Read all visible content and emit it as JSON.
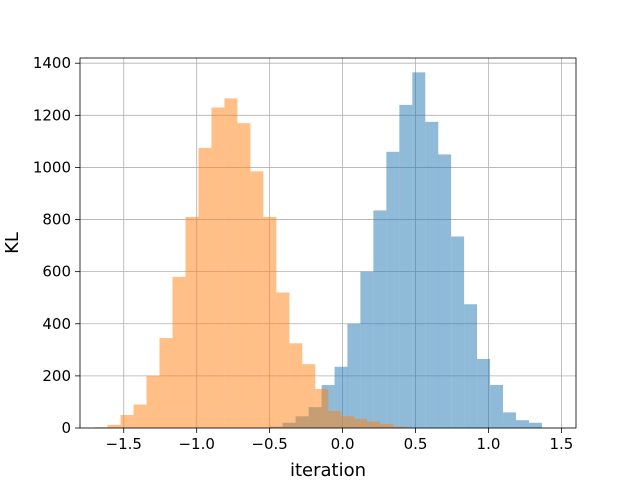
{
  "chart_data": {
    "type": "histogram",
    "title": "",
    "xlabel": "iteration",
    "ylabel": "KL",
    "xlim": [
      -1.8,
      1.6
    ],
    "ylim": [
      0,
      1420
    ],
    "xticks": [
      -1.5,
      -1.0,
      -0.5,
      0.0,
      0.5,
      1.0,
      1.5
    ],
    "xtick_labels": [
      "−1.5",
      "−1.0",
      "−0.5",
      "0.0",
      "0.5",
      "1.0",
      "1.5"
    ],
    "yticks": [
      0,
      200,
      400,
      600,
      800,
      1000,
      1200,
      1400
    ],
    "ytick_labels": [
      "0",
      "200",
      "400",
      "600",
      "800",
      "1000",
      "1200",
      "1400"
    ],
    "grid": true,
    "series": [
      {
        "color": "#1f77b4",
        "alpha": 0.5,
        "bin_width": 0.0889,
        "bins": [
          {
            "x": -0.5,
            "y": 5
          },
          {
            "x": -0.411,
            "y": 20
          },
          {
            "x": -0.322,
            "y": 45
          },
          {
            "x": -0.233,
            "y": 80
          },
          {
            "x": -0.144,
            "y": 165
          },
          {
            "x": -0.055,
            "y": 235
          },
          {
            "x": 0.033,
            "y": 400
          },
          {
            "x": 0.122,
            "y": 600
          },
          {
            "x": 0.211,
            "y": 835
          },
          {
            "x": 0.3,
            "y": 1060
          },
          {
            "x": 0.389,
            "y": 1240
          },
          {
            "x": 0.478,
            "y": 1365
          },
          {
            "x": 0.567,
            "y": 1175
          },
          {
            "x": 0.655,
            "y": 1050
          },
          {
            "x": 0.744,
            "y": 735
          },
          {
            "x": 0.833,
            "y": 475
          },
          {
            "x": 0.922,
            "y": 265
          },
          {
            "x": 1.011,
            "y": 165
          },
          {
            "x": 1.1,
            "y": 60
          },
          {
            "x": 1.189,
            "y": 30
          },
          {
            "x": 1.278,
            "y": 20
          }
        ]
      },
      {
        "color": "#ff7f0e",
        "alpha": 0.5,
        "bin_width": 0.0889,
        "bins": [
          {
            "x": -1.7,
            "y": 3
          },
          {
            "x": -1.611,
            "y": 12
          },
          {
            "x": -1.522,
            "y": 50
          },
          {
            "x": -1.433,
            "y": 90
          },
          {
            "x": -1.344,
            "y": 200
          },
          {
            "x": -1.255,
            "y": 345
          },
          {
            "x": -1.166,
            "y": 580
          },
          {
            "x": -1.077,
            "y": 810
          },
          {
            "x": -0.988,
            "y": 1075
          },
          {
            "x": -0.899,
            "y": 1230
          },
          {
            "x": -0.81,
            "y": 1265
          },
          {
            "x": -0.721,
            "y": 1170
          },
          {
            "x": -0.632,
            "y": 985
          },
          {
            "x": -0.543,
            "y": 810
          },
          {
            "x": -0.454,
            "y": 520
          },
          {
            "x": -0.365,
            "y": 325
          },
          {
            "x": -0.276,
            "y": 245
          },
          {
            "x": -0.187,
            "y": 150
          },
          {
            "x": -0.098,
            "y": 65
          },
          {
            "x": -0.009,
            "y": 45
          },
          {
            "x": 0.08,
            "y": 35
          },
          {
            "x": 0.169,
            "y": 25
          },
          {
            "x": 0.258,
            "y": 15
          },
          {
            "x": 0.347,
            "y": 5
          }
        ]
      }
    ]
  }
}
